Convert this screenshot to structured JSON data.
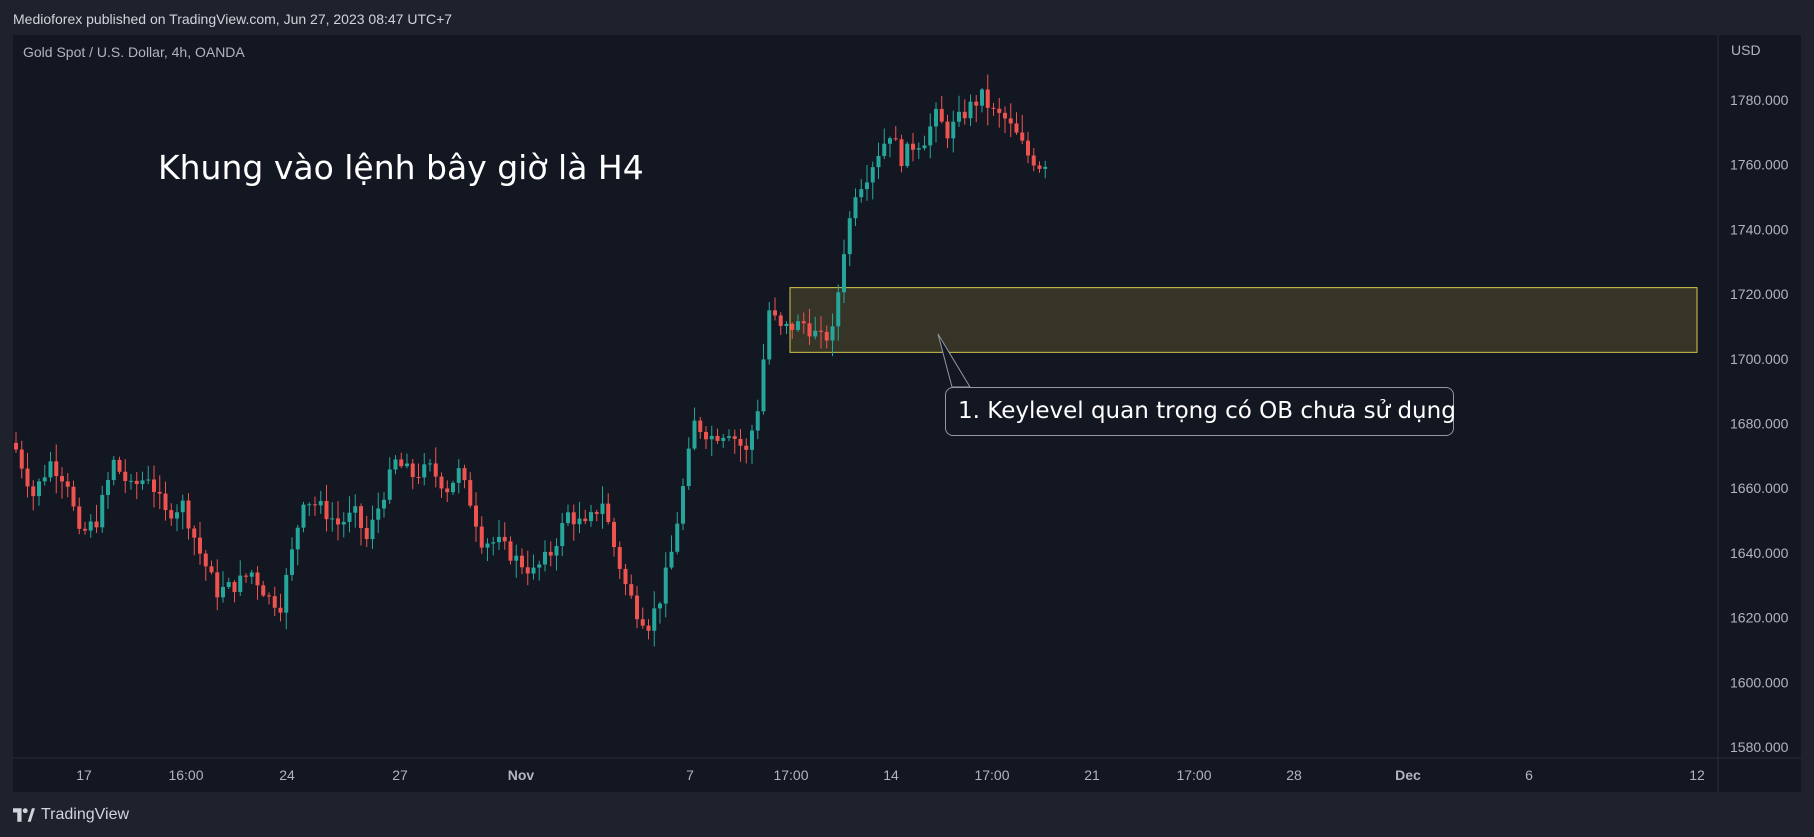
{
  "header": {
    "publisher_line": "Medioforex published on TradingView.com, Jun 27, 2023 08:47 UTC+7"
  },
  "footer": {
    "brand": "TradingView"
  },
  "colors": {
    "background": "#1e222d",
    "chart_background": "#131722",
    "bull": "#26a69a",
    "bear": "#ef5350",
    "zone_border": "#d4c84a",
    "zone_fill": "#3c3a28"
  },
  "chart_data": {
    "type": "candlestick",
    "symbol_label": "Gold Spot / U.S. Dollar, 4h, OANDA",
    "currency": "USD",
    "y_ticks": [
      1780,
      1760,
      1740,
      1720,
      1700,
      1680,
      1660,
      1640,
      1620,
      1600,
      1580
    ],
    "y_tick_labels": [
      "1780.000",
      "1760.000",
      "1740.000",
      "1720.000",
      "1700.000",
      "1680.000",
      "1660.000",
      "1640.000",
      "1620.000",
      "1600.000",
      "1580.000"
    ],
    "ylim": [
      1574,
      1796
    ],
    "x_ticks": [
      {
        "label": "17",
        "bold": false
      },
      {
        "label": "16:00",
        "bold": false
      },
      {
        "label": "24",
        "bold": false
      },
      {
        "label": "27",
        "bold": false
      },
      {
        "label": "Nov",
        "bold": true
      },
      {
        "label": "7",
        "bold": false
      },
      {
        "label": "17:00",
        "bold": false
      },
      {
        "label": "14",
        "bold": false
      },
      {
        "label": "17:00",
        "bold": false
      },
      {
        "label": "21",
        "bold": false
      },
      {
        "label": "17:00",
        "bold": false
      },
      {
        "label": "28",
        "bold": false
      },
      {
        "label": "Dec",
        "bold": true
      },
      {
        "label": "6",
        "bold": false
      },
      {
        "label": "12",
        "bold": false
      }
    ],
    "price_path": [
      [
        0,
        1672
      ],
      [
        3,
        1658
      ],
      [
        6,
        1668
      ],
      [
        9,
        1662
      ],
      [
        11,
        1645
      ],
      [
        14,
        1650
      ],
      [
        17,
        1668
      ],
      [
        20,
        1660
      ],
      [
        23,
        1664
      ],
      [
        26,
        1652
      ],
      [
        29,
        1655
      ],
      [
        32,
        1640
      ],
      [
        35,
        1628
      ],
      [
        38,
        1630
      ],
      [
        41,
        1634
      ],
      [
        44,
        1626
      ],
      [
        46,
        1624
      ],
      [
        48,
        1640
      ],
      [
        50,
        1657
      ],
      [
        53,
        1654
      ],
      [
        56,
        1649
      ],
      [
        59,
        1652
      ],
      [
        61,
        1644
      ],
      [
        63,
        1654
      ],
      [
        66,
        1668
      ],
      [
        69,
        1664
      ],
      [
        72,
        1666
      ],
      [
        75,
        1660
      ],
      [
        77,
        1665
      ],
      [
        79,
        1656
      ],
      [
        81,
        1644
      ],
      [
        84,
        1643
      ],
      [
        87,
        1638
      ],
      [
        90,
        1634
      ],
      [
        93,
        1640
      ],
      [
        96,
        1652
      ],
      [
        99,
        1648
      ],
      [
        102,
        1656
      ],
      [
        104,
        1642
      ],
      [
        106,
        1630
      ],
      [
        108,
        1622
      ],
      [
        110,
        1618
      ],
      [
        112,
        1626
      ],
      [
        114,
        1640
      ],
      [
        116,
        1660
      ],
      [
        118,
        1680
      ],
      [
        121,
        1676
      ],
      [
        124,
        1678
      ],
      [
        127,
        1671
      ],
      [
        129,
        1685
      ],
      [
        131,
        1715
      ],
      [
        133,
        1709
      ],
      [
        135,
        1710
      ],
      [
        137,
        1711
      ],
      [
        140,
        1706
      ],
      [
        142,
        1708
      ],
      [
        144,
        1734
      ],
      [
        146,
        1752
      ],
      [
        148,
        1757
      ],
      [
        150,
        1764
      ],
      [
        152,
        1770
      ],
      [
        154,
        1762
      ],
      [
        156,
        1766
      ],
      [
        158,
        1768
      ],
      [
        160,
        1775
      ],
      [
        162,
        1770
      ],
      [
        164,
        1774
      ],
      [
        166,
        1778
      ],
      [
        168,
        1781
      ],
      [
        170,
        1776
      ],
      [
        172,
        1774
      ],
      [
        174,
        1769
      ],
      [
        176,
        1763
      ],
      [
        178,
        1760
      ],
      [
        179,
        1761
      ]
    ],
    "zone": {
      "price_low": 1702,
      "price_high": 1722
    },
    "annotations": {
      "title_text": "Khung vào lệnh bây giờ là H4",
      "callout_text": "1. Keylevel quan trọng có OB chưa sử dụng"
    }
  }
}
